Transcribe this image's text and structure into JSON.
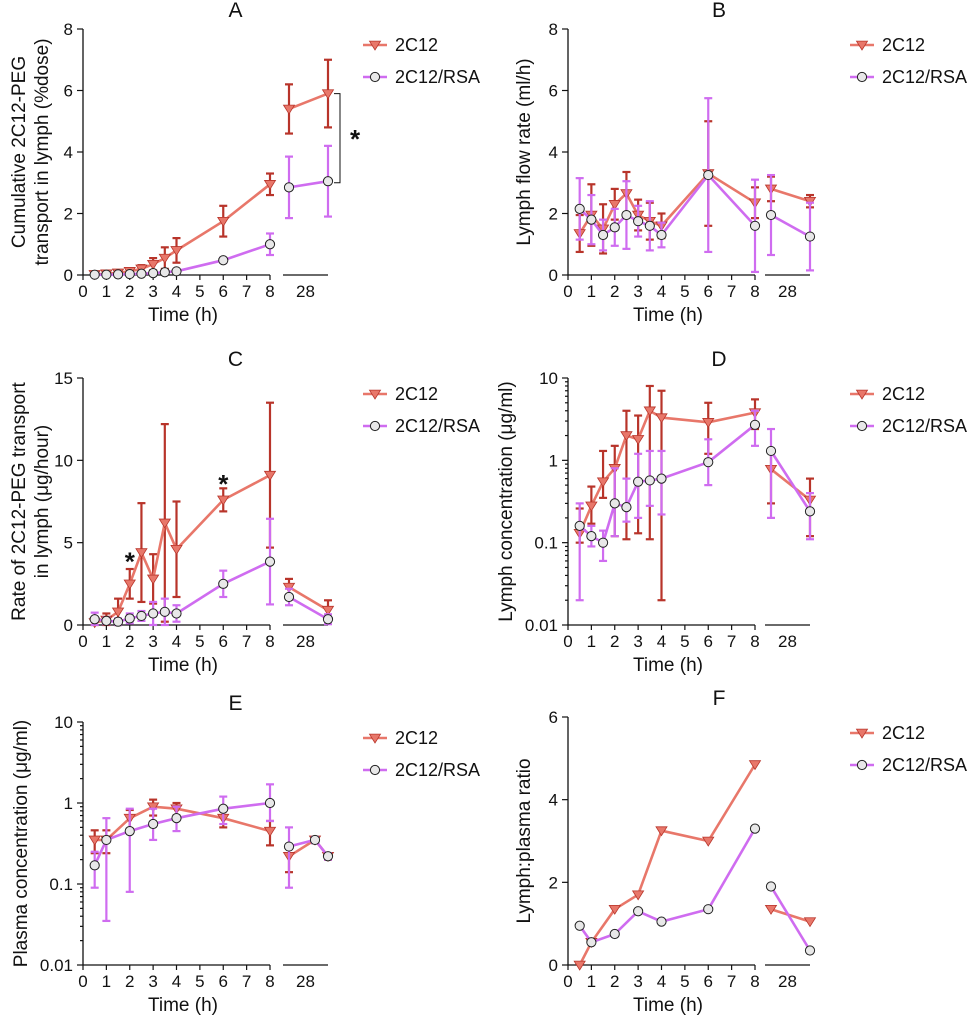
{
  "chart_data": [
    {
      "panel": "A",
      "type": "line",
      "scale": "linear",
      "xlabel": "Time (h)",
      "ylabel": [
        "Cumulative 2C12-PEG",
        "transport in lymph (%dose)"
      ],
      "ylim": [
        0,
        8
      ],
      "yticks": [
        0,
        2,
        4,
        6,
        8
      ],
      "xtick_labels": [
        "0",
        "1",
        "2",
        "3",
        "4",
        "5",
        "6",
        "7",
        "8",
        "28"
      ],
      "annotations": [
        {
          "text": "*",
          "kind": "bracket",
          "x": 28,
          "y_from": 3.0,
          "y_to": 5.9
        }
      ],
      "series": [
        {
          "name": "2C12",
          "color": "#e8776a",
          "marker": "triangle-down",
          "x": [
            0.5,
            1,
            1.5,
            2,
            2.5,
            3,
            3.5,
            4,
            6,
            8,
            24,
            30
          ],
          "y": [
            0.02,
            0.04,
            0.07,
            0.12,
            0.2,
            0.35,
            0.55,
            0.8,
            1.75,
            2.95,
            5.4,
            5.9
          ],
          "err": [
            0.02,
            0.03,
            0.05,
            0.08,
            0.12,
            0.2,
            0.35,
            0.4,
            0.5,
            0.35,
            0.8,
            1.1
          ]
        },
        {
          "name": "2C12/RSA",
          "color": "#cf6cf0",
          "marker": "circle",
          "x": [
            0.5,
            1,
            1.5,
            2,
            2.5,
            3,
            3.5,
            4,
            6,
            8,
            24,
            30
          ],
          "y": [
            0.01,
            0.01,
            0.02,
            0.03,
            0.04,
            0.06,
            0.09,
            0.12,
            0.48,
            1.0,
            2.85,
            3.05
          ],
          "err": [
            0.01,
            0.01,
            0.01,
            0.02,
            0.02,
            0.03,
            0.04,
            0.05,
            0.08,
            0.35,
            1.0,
            1.15
          ]
        }
      ]
    },
    {
      "panel": "B",
      "type": "line",
      "scale": "linear",
      "xlabel": "Time (h)",
      "ylabel": [
        "Lymph flow rate (ml/h)"
      ],
      "ylim": [
        0,
        8
      ],
      "yticks": [
        0,
        2,
        4,
        6,
        8
      ],
      "xtick_labels": [
        "0",
        "1",
        "2",
        "3",
        "4",
        "5",
        "6",
        "7",
        "8",
        "28"
      ],
      "series": [
        {
          "name": "2C12",
          "color": "#e8776a",
          "marker": "triangle-down",
          "x": [
            0.5,
            1,
            1.5,
            2,
            2.5,
            3,
            3.5,
            4,
            6,
            8,
            24,
            30
          ],
          "y": [
            1.35,
            1.95,
            1.5,
            2.3,
            2.65,
            1.95,
            1.75,
            1.6,
            3.3,
            2.35,
            2.8,
            2.4
          ],
          "err": [
            0.6,
            1.0,
            0.8,
            0.5,
            0.7,
            0.5,
            0.6,
            0.4,
            1.7,
            0.5,
            0.4,
            0.2
          ]
        },
        {
          "name": "2C12/RSA",
          "color": "#cf6cf0",
          "marker": "circle",
          "x": [
            0.5,
            1,
            1.5,
            2,
            2.5,
            3,
            3.5,
            4,
            6,
            8,
            24,
            30
          ],
          "y": [
            2.15,
            1.8,
            1.3,
            1.55,
            1.95,
            1.75,
            1.6,
            1.3,
            3.25,
            1.6,
            1.95,
            1.25
          ],
          "err": [
            1.0,
            0.8,
            0.5,
            0.6,
            1.1,
            0.5,
            0.8,
            0.4,
            2.5,
            1.5,
            1.3,
            1.1
          ]
        }
      ]
    },
    {
      "panel": "C",
      "type": "line",
      "scale": "linear",
      "xlabel": "Time (h)",
      "ylabel": [
        "Rate of 2C12-PEG transport",
        "in lymph (μg/hour)"
      ],
      "ylim": [
        0,
        15
      ],
      "yticks": [
        0,
        5,
        10,
        15
      ],
      "xtick_labels": [
        "0",
        "1",
        "2",
        "3",
        "4",
        "5",
        "6",
        "7",
        "8",
        "28"
      ],
      "annotations": [
        {
          "text": "*",
          "x": 2,
          "y": 3.8
        },
        {
          "text": "*",
          "x": 6,
          "y": 8.5
        }
      ],
      "series": [
        {
          "name": "2C12",
          "color": "#e8776a",
          "marker": "triangle-down",
          "x": [
            0.5,
            1,
            1.5,
            2,
            2.5,
            3,
            3.5,
            4,
            6,
            8,
            24,
            30
          ],
          "y": [
            0.15,
            0.3,
            0.8,
            2.5,
            4.4,
            2.8,
            6.2,
            4.6,
            7.6,
            9.1,
            2.3,
            0.9
          ],
          "err": [
            0.2,
            0.4,
            0.8,
            0.9,
            3.0,
            1.5,
            6.0,
            2.9,
            0.7,
            4.4,
            0.5,
            0.6
          ]
        },
        {
          "name": "2C12/RSA",
          "color": "#cf6cf0",
          "marker": "circle",
          "x": [
            0.5,
            1,
            1.5,
            2,
            2.5,
            3,
            3.5,
            4,
            6,
            8,
            24,
            30
          ],
          "y": [
            0.35,
            0.25,
            0.2,
            0.4,
            0.55,
            0.7,
            0.8,
            0.7,
            2.5,
            3.85,
            1.7,
            0.35
          ],
          "err": [
            0.4,
            0.2,
            0.2,
            0.3,
            0.3,
            0.7,
            0.8,
            0.5,
            0.8,
            2.6,
            0.5,
            0.3
          ]
        }
      ]
    },
    {
      "panel": "D",
      "type": "line",
      "scale": "log",
      "xlabel": "Time (h)",
      "ylabel": [
        "Lymph concentration (μg/ml)"
      ],
      "ylim": [
        0.01,
        10
      ],
      "yticks": [
        0.01,
        0.1,
        1,
        10
      ],
      "ytick_labels": [
        "0.01",
        "0.1",
        "1",
        "10"
      ],
      "xtick_labels": [
        "0",
        "1",
        "2",
        "3",
        "4",
        "5",
        "6",
        "7",
        "8",
        "28"
      ],
      "series": [
        {
          "name": "2C12",
          "color": "#e8776a",
          "marker": "triangle-down",
          "x": [
            0.5,
            1,
            1.5,
            2,
            2.5,
            3,
            3.5,
            4,
            6,
            8,
            24,
            30
          ],
          "y": [
            0.13,
            0.28,
            0.55,
            0.8,
            2.0,
            1.8,
            4.0,
            3.3,
            2.9,
            3.8,
            0.78,
            0.33
          ],
          "err_lo": [
            0.1,
            0.17,
            0.35,
            0.12,
            0.11,
            0.13,
            0.11,
            0.02,
            1.2,
            2.4,
            0.3,
            0.12
          ],
          "err_hi": [
            0.26,
            0.48,
            1.3,
            1.5,
            4.0,
            3.5,
            8.0,
            7.0,
            5.0,
            5.5,
            1.3,
            0.6
          ]
        },
        {
          "name": "2C12/RSA",
          "color": "#cf6cf0",
          "marker": "circle",
          "x": [
            0.5,
            1,
            1.5,
            2,
            2.5,
            3,
            3.5,
            4,
            6,
            8,
            24,
            30
          ],
          "y": [
            0.16,
            0.12,
            0.1,
            0.3,
            0.27,
            0.55,
            0.57,
            0.6,
            0.95,
            2.7,
            1.3,
            0.24
          ],
          "err_lo": [
            0.02,
            0.09,
            0.06,
            0.12,
            0.18,
            0.2,
            0.28,
            0.22,
            0.5,
            1.5,
            0.2,
            0.11
          ],
          "err_hi": [
            0.3,
            0.16,
            0.14,
            0.8,
            0.6,
            1.2,
            1.3,
            1.3,
            1.8,
            4.0,
            2.4,
            0.4
          ]
        }
      ]
    },
    {
      "panel": "E",
      "type": "line",
      "scale": "log",
      "xlabel": "Time (h)",
      "ylabel": [
        "Plasma concentration (μg/ml)"
      ],
      "ylim": [
        0.01,
        10
      ],
      "yticks": [
        0.01,
        0.1,
        1,
        10
      ],
      "ytick_labels": [
        "0.01",
        "0.1",
        "1",
        "10"
      ],
      "xtick_labels": [
        "0",
        "1",
        "2",
        "3",
        "4",
        "5",
        "6",
        "7",
        "8",
        "28"
      ],
      "series": [
        {
          "name": "2C12",
          "color": "#e8776a",
          "marker": "triangle-down",
          "x": [
            0.5,
            1,
            2,
            3,
            4,
            6,
            8,
            24,
            28,
            30
          ],
          "y": [
            0.35,
            0.35,
            0.65,
            0.9,
            0.85,
            0.65,
            0.45,
            0.22,
            0.35,
            0.22
          ],
          "err_lo": [
            0.24,
            0.24,
            0.48,
            0.7,
            0.7,
            0.5,
            0.3,
            0.14,
            0.32,
            0.2
          ],
          "err_hi": [
            0.46,
            0.46,
            0.82,
            1.1,
            1.0,
            0.8,
            0.6,
            0.3,
            0.38,
            0.24
          ]
        },
        {
          "name": "2C12/RSA",
          "color": "#cf6cf0",
          "marker": "circle",
          "x": [
            0.5,
            1,
            2,
            3,
            4,
            6,
            8,
            24,
            28,
            30
          ],
          "y": [
            0.17,
            0.35,
            0.45,
            0.55,
            0.65,
            0.85,
            1.0,
            0.29,
            0.35,
            0.22
          ],
          "err_lo": [
            0.09,
            0.035,
            0.08,
            0.35,
            0.45,
            0.55,
            0.6,
            0.09,
            0.32,
            0.2
          ],
          "err_hi": [
            0.25,
            0.65,
            0.85,
            0.85,
            0.9,
            1.2,
            1.7,
            0.5,
            0.38,
            0.24
          ]
        }
      ]
    },
    {
      "panel": "F",
      "type": "line",
      "scale": "linear",
      "xlabel": "Time (h)",
      "ylabel": [
        "Lymph:plasma ratio"
      ],
      "ylim": [
        0,
        6
      ],
      "yticks": [
        0,
        2,
        4,
        6
      ],
      "xtick_labels": [
        "0",
        "1",
        "2",
        "3",
        "4",
        "5",
        "6",
        "7",
        "8",
        "28"
      ],
      "series": [
        {
          "name": "2C12",
          "color": "#e8776a",
          "marker": "triangle-down",
          "x": [
            0.5,
            1,
            2,
            3,
            4,
            6,
            8,
            24,
            30
          ],
          "y": [
            0.0,
            0.55,
            1.35,
            1.7,
            3.25,
            3.0,
            4.85,
            1.35,
            1.05
          ]
        },
        {
          "name": "2C12/RSA",
          "color": "#cf6cf0",
          "marker": "circle",
          "x": [
            0.5,
            1,
            2,
            3,
            4,
            6,
            8,
            24,
            30
          ],
          "y": [
            0.95,
            0.55,
            0.75,
            1.3,
            1.05,
            1.35,
            3.3,
            1.9,
            0.35
          ]
        }
      ]
    }
  ]
}
